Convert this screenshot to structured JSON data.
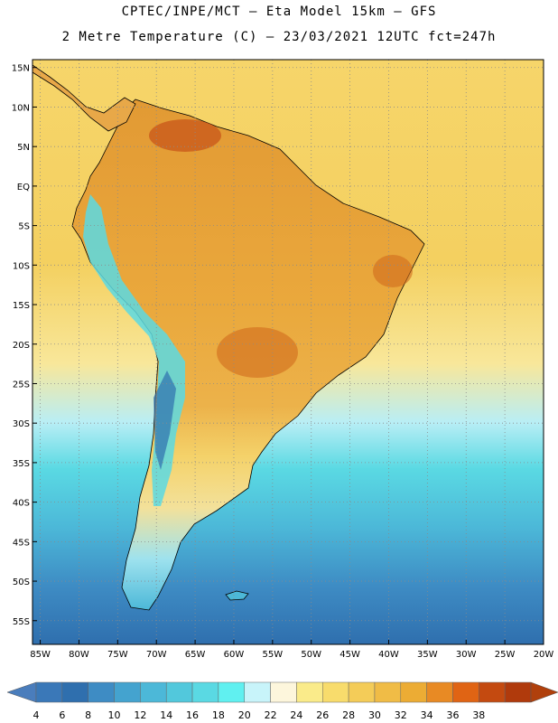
{
  "header": {
    "line1": "CPTEC/INPE/MCT –  Eta Model 15km – GFS",
    "line2": "2 Metre Temperature (C) – 23/03/2021 12UTC fct=247h"
  },
  "map": {
    "lat_range": [
      -58,
      16
    ],
    "lon_range": [
      -86,
      -20
    ],
    "lat_labels": [
      {
        "lat": 15,
        "text": "15N"
      },
      {
        "lat": 10,
        "text": "10N"
      },
      {
        "lat": 5,
        "text": "5N"
      },
      {
        "lat": 0,
        "text": "EQ"
      },
      {
        "lat": -5,
        "text": "5S"
      },
      {
        "lat": -10,
        "text": "10S"
      },
      {
        "lat": -15,
        "text": "15S"
      },
      {
        "lat": -20,
        "text": "20S"
      },
      {
        "lat": -25,
        "text": "25S"
      },
      {
        "lat": -30,
        "text": "30S"
      },
      {
        "lat": -35,
        "text": "35S"
      },
      {
        "lat": -40,
        "text": "40S"
      },
      {
        "lat": -45,
        "text": "45S"
      },
      {
        "lat": -50,
        "text": "50S"
      },
      {
        "lat": -55,
        "text": "55S"
      }
    ],
    "lon_labels": [
      {
        "lon": -85,
        "text": "85W"
      },
      {
        "lon": -80,
        "text": "80W"
      },
      {
        "lon": -75,
        "text": "75W"
      },
      {
        "lon": -70,
        "text": "70W"
      },
      {
        "lon": -65,
        "text": "65W"
      },
      {
        "lon": -60,
        "text": "60W"
      },
      {
        "lon": -55,
        "text": "55W"
      },
      {
        "lon": -50,
        "text": "50W"
      },
      {
        "lon": -45,
        "text": "45W"
      },
      {
        "lon": -40,
        "text": "40W"
      },
      {
        "lon": -35,
        "text": "35W"
      },
      {
        "lon": -30,
        "text": "30W"
      },
      {
        "lon": -25,
        "text": "25W"
      },
      {
        "lon": -20,
        "text": "20W"
      }
    ]
  },
  "colorbar": {
    "labels": [
      "4",
      "6",
      "8",
      "10",
      "12",
      "14",
      "16",
      "18",
      "20",
      "22",
      "24",
      "26",
      "28",
      "30",
      "32",
      "34",
      "36",
      "38"
    ],
    "colors": [
      "#3a78b8",
      "#2f6fae",
      "#3e8cc4",
      "#44a3cf",
      "#4cb8d8",
      "#52c8dc",
      "#5ad9e3",
      "#60f0f0",
      "#c8f4fa",
      "#fdf6dc",
      "#faeb8a",
      "#f8dc6c",
      "#f4cc58",
      "#f0bc46",
      "#ecac34",
      "#e88a24",
      "#e06414",
      "#c44a10",
      "#b03a0c"
    ],
    "under_color": "#4a7dbc",
    "over_color": "#b0400c"
  }
}
